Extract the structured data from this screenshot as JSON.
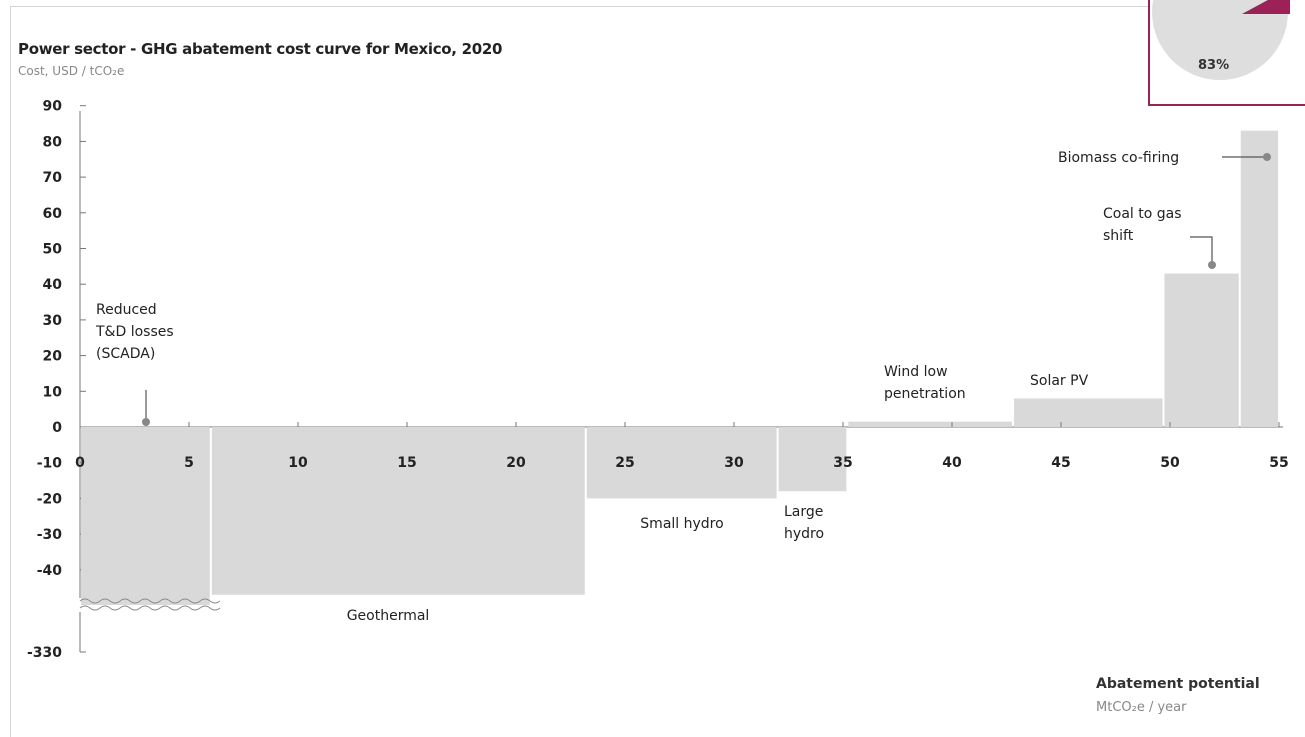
{
  "chart_data": {
    "type": "bar",
    "subtype": "marginal-abatement-cost-curve",
    "title": "Power sector - GHG abatement cost curve for Mexico, 2020",
    "ylabel": "Cost, USD / tCO₂e",
    "xlabel": "Abatement potential",
    "xunit": "MtCO₂e / year",
    "xlim": [
      0,
      55
    ],
    "ylim": [
      -330,
      90
    ],
    "x_ticks": [
      0,
      5,
      10,
      15,
      20,
      25,
      30,
      35,
      40,
      45,
      50,
      55
    ],
    "y_ticks": [
      90,
      80,
      70,
      60,
      50,
      40,
      30,
      20,
      10,
      0,
      -10,
      -20,
      -30,
      -40,
      -330
    ],
    "axis_break": "between -40 and -330",
    "bars": [
      {
        "name": "Reduced T&D losses (SCADA)",
        "label_lines": [
          "Reduced",
          "T&D losses",
          "(SCADA)"
        ],
        "x_start": 0,
        "x_end": 6,
        "value": -330
      },
      {
        "name": "Geothermal",
        "label_lines": [
          "Geothermal"
        ],
        "x_start": 6,
        "x_end": 23.2,
        "value": -47
      },
      {
        "name": "Small hydro",
        "label_lines": [
          "Small hydro"
        ],
        "x_start": 23.2,
        "x_end": 32,
        "value": -20
      },
      {
        "name": "Large hydro",
        "label_lines": [
          "Large",
          "hydro"
        ],
        "x_start": 32,
        "x_end": 35.2,
        "value": -18
      },
      {
        "name": "Wind low penetration",
        "label_lines": [
          "Wind low",
          "penetration"
        ],
        "x_start": 35.2,
        "x_end": 42.8,
        "value": 1.5
      },
      {
        "name": "Solar PV",
        "label_lines": [
          "Solar PV"
        ],
        "x_start": 42.8,
        "x_end": 49.7,
        "value": 8
      },
      {
        "name": "Coal to gas shift",
        "label_lines": [
          "Coal to gas",
          "shift"
        ],
        "x_start": 49.7,
        "x_end": 53.2,
        "value": 43
      },
      {
        "name": "Biomass co-firing",
        "label_lines": [
          "Biomass co-firing"
        ],
        "x_start": 53.2,
        "x_end": 55,
        "value": 83
      }
    ],
    "grid": false,
    "bar_color": "#d9d9d9"
  },
  "callout": {
    "value": "83%",
    "border_color": "#9b2156",
    "pie_color": "#dedede",
    "accent_color": "#9b2156"
  }
}
